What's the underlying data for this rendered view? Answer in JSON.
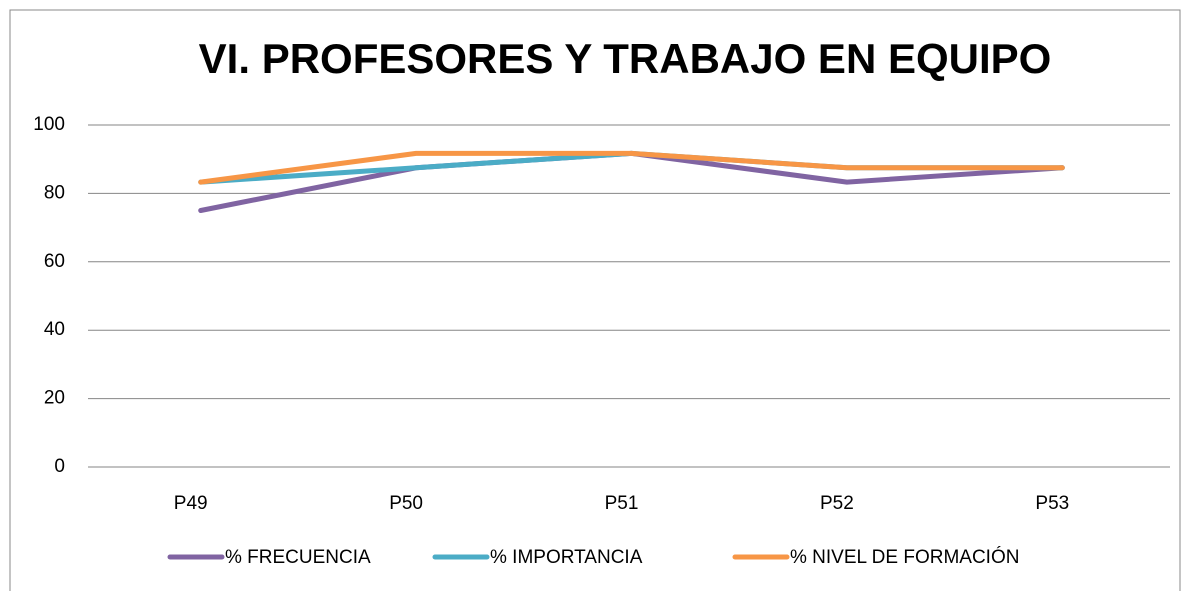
{
  "chart_data": {
    "type": "line",
    "title": "VI. PROFESORES Y TRABAJO EN EQUIPO",
    "categories": [
      "P49",
      "P50",
      "P51",
      "P52",
      "P53"
    ],
    "series": [
      {
        "name": "% FRECUENCIA",
        "color": "#8064a2",
        "values": [
          75,
          87.5,
          91.7,
          83.3,
          87.5
        ]
      },
      {
        "name": "% IMPORTANCIA",
        "color": "#4bacc6",
        "values": [
          83.3,
          87.5,
          91.7,
          87.5,
          87.5
        ]
      },
      {
        "name": "% NIVEL DE FORMACIÓN",
        "color": "#f79646",
        "values": [
          83.3,
          91.7,
          91.7,
          87.5,
          87.5
        ]
      }
    ],
    "ylim": [
      0,
      100
    ],
    "yticks": [
      0,
      20,
      40,
      60,
      80,
      100
    ],
    "grid": true,
    "legend": "bottom"
  }
}
